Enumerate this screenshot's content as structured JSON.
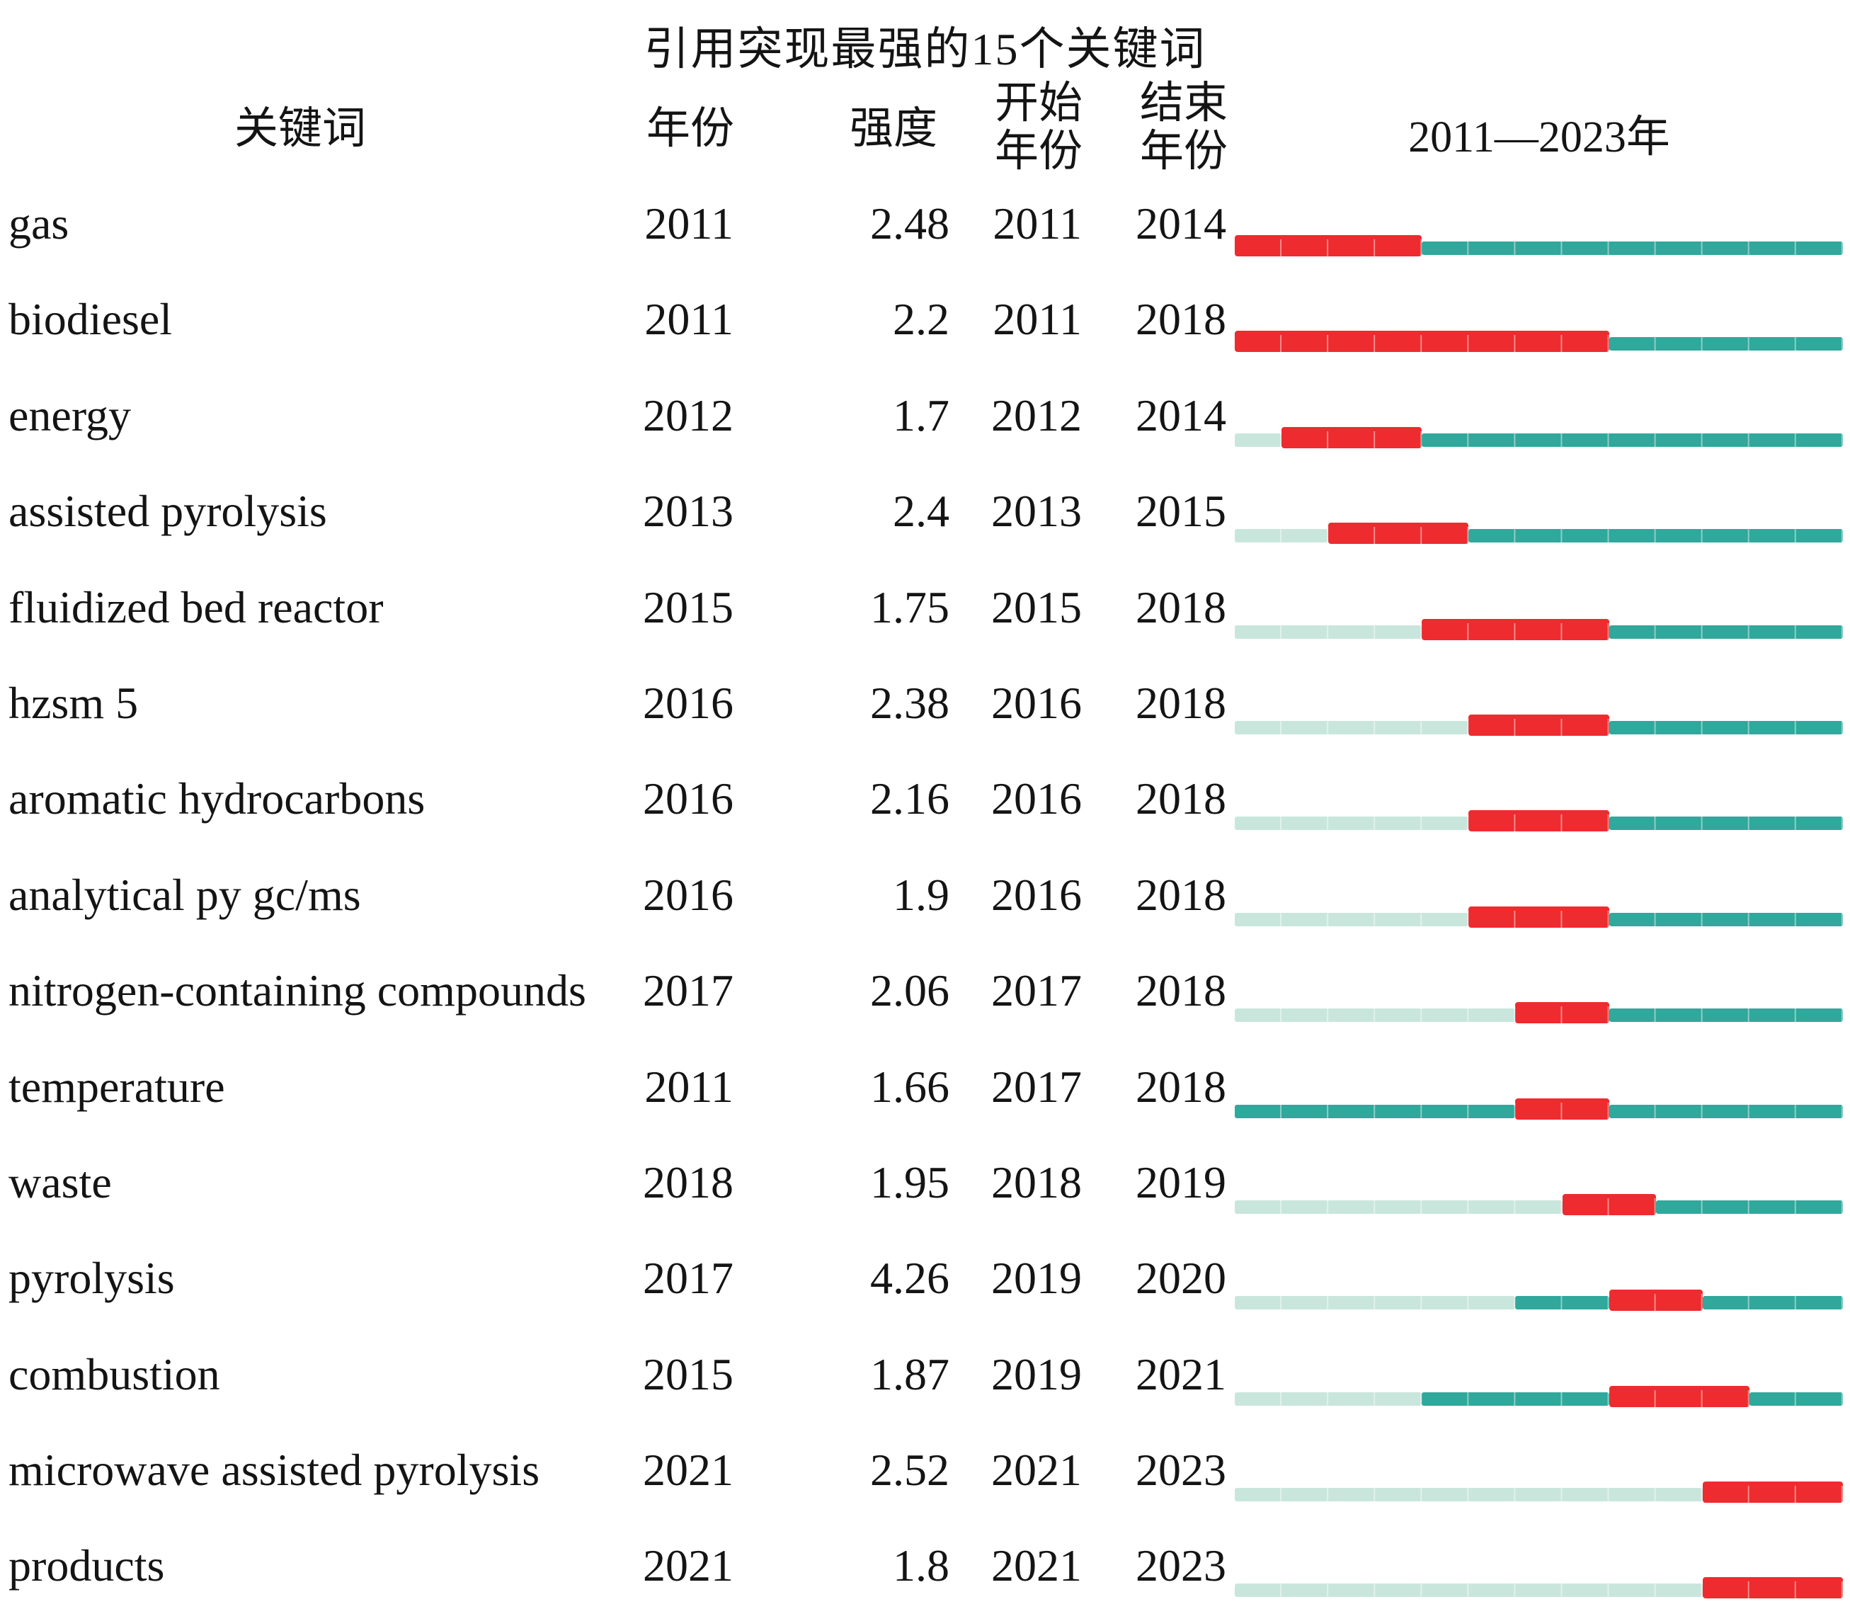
{
  "title": "引用突现最强的15个关键词",
  "headers": {
    "keyword": "关键词",
    "year": "年份",
    "strength": "强度",
    "begin": "开始\n年份",
    "end": "结束\n年份",
    "range": "2011—2023年"
  },
  "timeline": {
    "start_year": 2011,
    "end_year": 2023
  },
  "colors": {
    "burst_red": "#ee2b2e",
    "active_teal": "#30a89b",
    "inactive_pale": "#c9e6dd",
    "text": "#141414",
    "background": "#ffffff"
  },
  "rows": [
    {
      "keyword": "gas",
      "year": "2011",
      "strength": "2.48",
      "begin": "2011",
      "end": "2014"
    },
    {
      "keyword": "biodiesel",
      "year": "2011",
      "strength": "2.2",
      "begin": "2011",
      "end": "2018"
    },
    {
      "keyword": "energy",
      "year": "2012",
      "strength": "1.7",
      "begin": "2012",
      "end": "2014"
    },
    {
      "keyword": "assisted pyrolysis",
      "year": "2013",
      "strength": "2.4",
      "begin": "2013",
      "end": "2015"
    },
    {
      "keyword": "fluidized bed reactor",
      "year": "2015",
      "strength": "1.75",
      "begin": "2015",
      "end": "2018"
    },
    {
      "keyword": "hzsm 5",
      "year": "2016",
      "strength": "2.38",
      "begin": "2016",
      "end": "2018"
    },
    {
      "keyword": "aromatic hydrocarbons",
      "year": "2016",
      "strength": "2.16",
      "begin": "2016",
      "end": "2018"
    },
    {
      "keyword": "analytical py gc/ms",
      "year": "2016",
      "strength": "1.9",
      "begin": "2016",
      "end": "2018"
    },
    {
      "keyword": "nitrogen-containing compounds",
      "year": "2017",
      "strength": "2.06",
      "begin": "2017",
      "end": "2018"
    },
    {
      "keyword": "temperature",
      "year": "2011",
      "strength": "1.66",
      "begin": "2017",
      "end": "2018"
    },
    {
      "keyword": "waste",
      "year": "2018",
      "strength": "1.95",
      "begin": "2018",
      "end": "2019"
    },
    {
      "keyword": "pyrolysis",
      "year": "2017",
      "strength": "4.26",
      "begin": "2019",
      "end": "2020"
    },
    {
      "keyword": "combustion",
      "year": "2015",
      "strength": "1.87",
      "begin": "2019",
      "end": "2021"
    },
    {
      "keyword": "microwave assisted pyrolysis",
      "year": "2021",
      "strength": "2.52",
      "begin": "2021",
      "end": "2023"
    },
    {
      "keyword": "products",
      "year": "2021",
      "strength": "1.8",
      "begin": "2021",
      "end": "2023"
    }
  ],
  "chart_data": {
    "type": "table",
    "title": "引用突现最强的15个关键词",
    "columns": [
      "关键词",
      "年份",
      "强度",
      "开始年份",
      "结束年份",
      "2011—2023年"
    ],
    "timeline_axis": {
      "start": 2011,
      "end": 2023,
      "label": "2011—2023年"
    },
    "bar_encoding": {
      "red_segment": "burst period (开始年份–结束年份)",
      "teal_segment": "keyword present, non-burst years",
      "pale_segment": "years before keyword first year (年份)"
    },
    "rows": [
      {
        "keyword": "gas",
        "year": 2011,
        "strength": 2.48,
        "burst_begin": 2011,
        "burst_end": 2014
      },
      {
        "keyword": "biodiesel",
        "year": 2011,
        "strength": 2.2,
        "burst_begin": 2011,
        "burst_end": 2018
      },
      {
        "keyword": "energy",
        "year": 2012,
        "strength": 1.7,
        "burst_begin": 2012,
        "burst_end": 2014
      },
      {
        "keyword": "assisted pyrolysis",
        "year": 2013,
        "strength": 2.4,
        "burst_begin": 2013,
        "burst_end": 2015
      },
      {
        "keyword": "fluidized bed reactor",
        "year": 2015,
        "strength": 1.75,
        "burst_begin": 2015,
        "burst_end": 2018
      },
      {
        "keyword": "hzsm 5",
        "year": 2016,
        "strength": 2.38,
        "burst_begin": 2016,
        "burst_end": 2018
      },
      {
        "keyword": "aromatic hydrocarbons",
        "year": 2016,
        "strength": 2.16,
        "burst_begin": 2016,
        "burst_end": 2018
      },
      {
        "keyword": "analytical py gc/ms",
        "year": 2016,
        "strength": 1.9,
        "burst_begin": 2016,
        "burst_end": 2018
      },
      {
        "keyword": "nitrogen-containing compounds",
        "year": 2017,
        "strength": 2.06,
        "burst_begin": 2017,
        "burst_end": 2018
      },
      {
        "keyword": "temperature",
        "year": 2011,
        "strength": 1.66,
        "burst_begin": 2017,
        "burst_end": 2018
      },
      {
        "keyword": "waste",
        "year": 2018,
        "strength": 1.95,
        "burst_begin": 2018,
        "burst_end": 2019
      },
      {
        "keyword": "pyrolysis",
        "year": 2017,
        "strength": 4.26,
        "burst_begin": 2019,
        "burst_end": 2020
      },
      {
        "keyword": "combustion",
        "year": 2015,
        "strength": 1.87,
        "burst_begin": 2019,
        "burst_end": 2021
      },
      {
        "keyword": "microwave assisted pyrolysis",
        "year": 2021,
        "strength": 2.52,
        "burst_begin": 2021,
        "burst_end": 2023
      },
      {
        "keyword": "products",
        "year": 2021,
        "strength": 1.8,
        "burst_begin": 2021,
        "burst_end": 2023
      }
    ]
  }
}
